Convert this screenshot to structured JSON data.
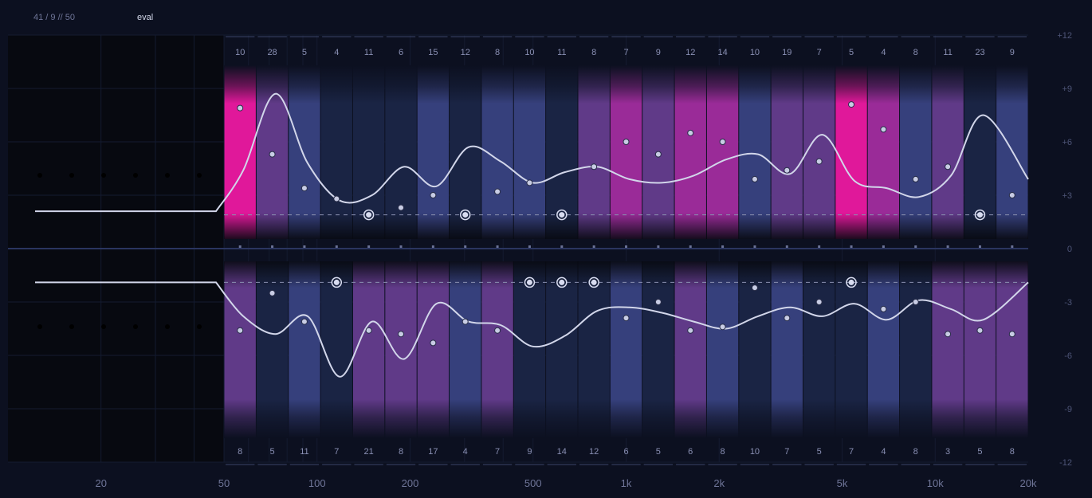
{
  "header": {
    "counter": "41 / 9 // 50",
    "mode": "eval"
  },
  "colors": {
    "background": "#0c1020",
    "plot_background": "#070910",
    "band_navy": "#1a2444",
    "band_blue": "#36407c",
    "band_purple": "#603a88",
    "band_magenta": "#9a2b98",
    "band_pink": "#e0189a",
    "curve": "#d2d6ea",
    "zero_line": "#2a3560"
  },
  "chart_data": {
    "type": "eq-analyzer",
    "x_scale": "log",
    "x_range": [
      10,
      20000
    ],
    "x_ticks": [
      {
        "label": "20",
        "value": 20
      },
      {
        "label": "50",
        "value": 50
      },
      {
        "label": "100",
        "value": 100
      },
      {
        "label": "200",
        "value": 200
      },
      {
        "label": "500",
        "value": 500
      },
      {
        "label": "1k",
        "value": 1000
      },
      {
        "label": "2k",
        "value": 2000
      },
      {
        "label": "5k",
        "value": 5000
      },
      {
        "label": "10k",
        "value": 10000
      },
      {
        "label": "20k",
        "value": 20000
      }
    ],
    "y_range": [
      -12,
      12
    ],
    "y_ticks": [
      {
        "label": "+12",
        "value": 12
      },
      {
        "label": "+9",
        "value": 9
      },
      {
        "label": "+6",
        "value": 6
      },
      {
        "label": "+3",
        "value": 3
      },
      {
        "label": "0",
        "value": 0
      },
      {
        "label": "-3",
        "value": -3
      },
      {
        "label": "-6",
        "value": -6
      },
      {
        "label": "-9",
        "value": -9
      },
      {
        "label": "-12",
        "value": -12
      }
    ],
    "reference_db": 1.9,
    "top_counts": [
      "10",
      "28",
      "5",
      "4",
      "11",
      "6",
      "15",
      "12",
      "8",
      "10",
      "11",
      "8",
      "7",
      "9",
      "12",
      "14",
      "10",
      "19",
      "7",
      "5",
      "4",
      "8",
      "11",
      "23",
      "9"
    ],
    "bottom_counts": [
      "8",
      "5",
      "11",
      "7",
      "21",
      "8",
      "17",
      "4",
      "7",
      "9",
      "14",
      "12",
      "6",
      "5",
      "6",
      "8",
      "10",
      "7",
      "5",
      "7",
      "4",
      "8",
      "3",
      "5",
      "8"
    ],
    "top_colors": [
      "pink",
      "purple",
      "blue",
      "navy",
      "navy",
      "navy",
      "blue",
      "navy",
      "blue",
      "blue",
      "navy",
      "purple",
      "magenta",
      "purple",
      "magenta",
      "magenta",
      "blue",
      "purple",
      "purple",
      "pink",
      "magenta",
      "blue",
      "purple",
      "navy",
      "blue"
    ],
    "bottom_colors": [
      "purple",
      "navy",
      "blue",
      "navy",
      "purple",
      "purple",
      "purple",
      "blue",
      "purple",
      "navy",
      "navy",
      "navy",
      "blue",
      "navy",
      "purple",
      "blue",
      "navy",
      "blue",
      "navy",
      "navy",
      "blue",
      "navy",
      "purple",
      "purple",
      "purple"
    ],
    "top_glow": [
      true,
      false,
      false,
      false,
      false,
      false,
      false,
      false,
      false,
      false,
      false,
      false,
      false,
      false,
      true,
      true,
      false,
      false,
      false,
      true,
      false,
      false,
      false,
      false,
      false
    ],
    "top_values": [
      7.9,
      5.3,
      3.4,
      2.8,
      1.9,
      2.3,
      3.0,
      1.9,
      3.2,
      3.7,
      1.9,
      4.6,
      6.0,
      5.3,
      6.5,
      6.0,
      3.9,
      4.4,
      4.9,
      8.1,
      6.7,
      3.9,
      4.6,
      1.9,
      3.0
    ],
    "top_markers": [
      false,
      false,
      false,
      false,
      true,
      false,
      false,
      true,
      false,
      false,
      true,
      false,
      false,
      false,
      false,
      false,
      false,
      false,
      false,
      false,
      false,
      false,
      false,
      true,
      false
    ],
    "bottom_values": [
      -4.6,
      -2.5,
      -4.1,
      -1.9,
      -4.6,
      -4.8,
      -5.3,
      -4.1,
      -4.6,
      -1.9,
      -1.9,
      -1.9,
      -3.9,
      -3.0,
      -4.6,
      -4.4,
      -2.2,
      -3.9,
      -3.0,
      -1.9,
      -3.4,
      -3.0,
      -4.8,
      -4.6,
      -4.8
    ],
    "bottom_markers": [
      false,
      false,
      false,
      true,
      false,
      false,
      false,
      false,
      false,
      true,
      true,
      true,
      false,
      false,
      false,
      false,
      false,
      false,
      false,
      true,
      false,
      false,
      false,
      false,
      false
    ],
    "top_curve": [
      2.1,
      4.4,
      8.7,
      4.8,
      2.7,
      3.0,
      4.6,
      3.5,
      5.7,
      4.9,
      3.7,
      4.3,
      4.6,
      3.9,
      3.7,
      4.1,
      5.0,
      5.3,
      4.2,
      6.4,
      3.8,
      3.4,
      2.9,
      4.1,
      7.5,
      3.9
    ],
    "bottom_curve": [
      -1.9,
      -3.8,
      -4.8,
      -3.8,
      -7.2,
      -4.1,
      -6.2,
      -3.1,
      -4.1,
      -4.3,
      -5.5,
      -4.9,
      -3.5,
      -3.3,
      -3.6,
      -4.1,
      -4.5,
      -3.8,
      -3.3,
      -3.8,
      -3.1,
      -4.0,
      -2.9,
      -3.4,
      -4.0,
      -1.9
    ]
  }
}
